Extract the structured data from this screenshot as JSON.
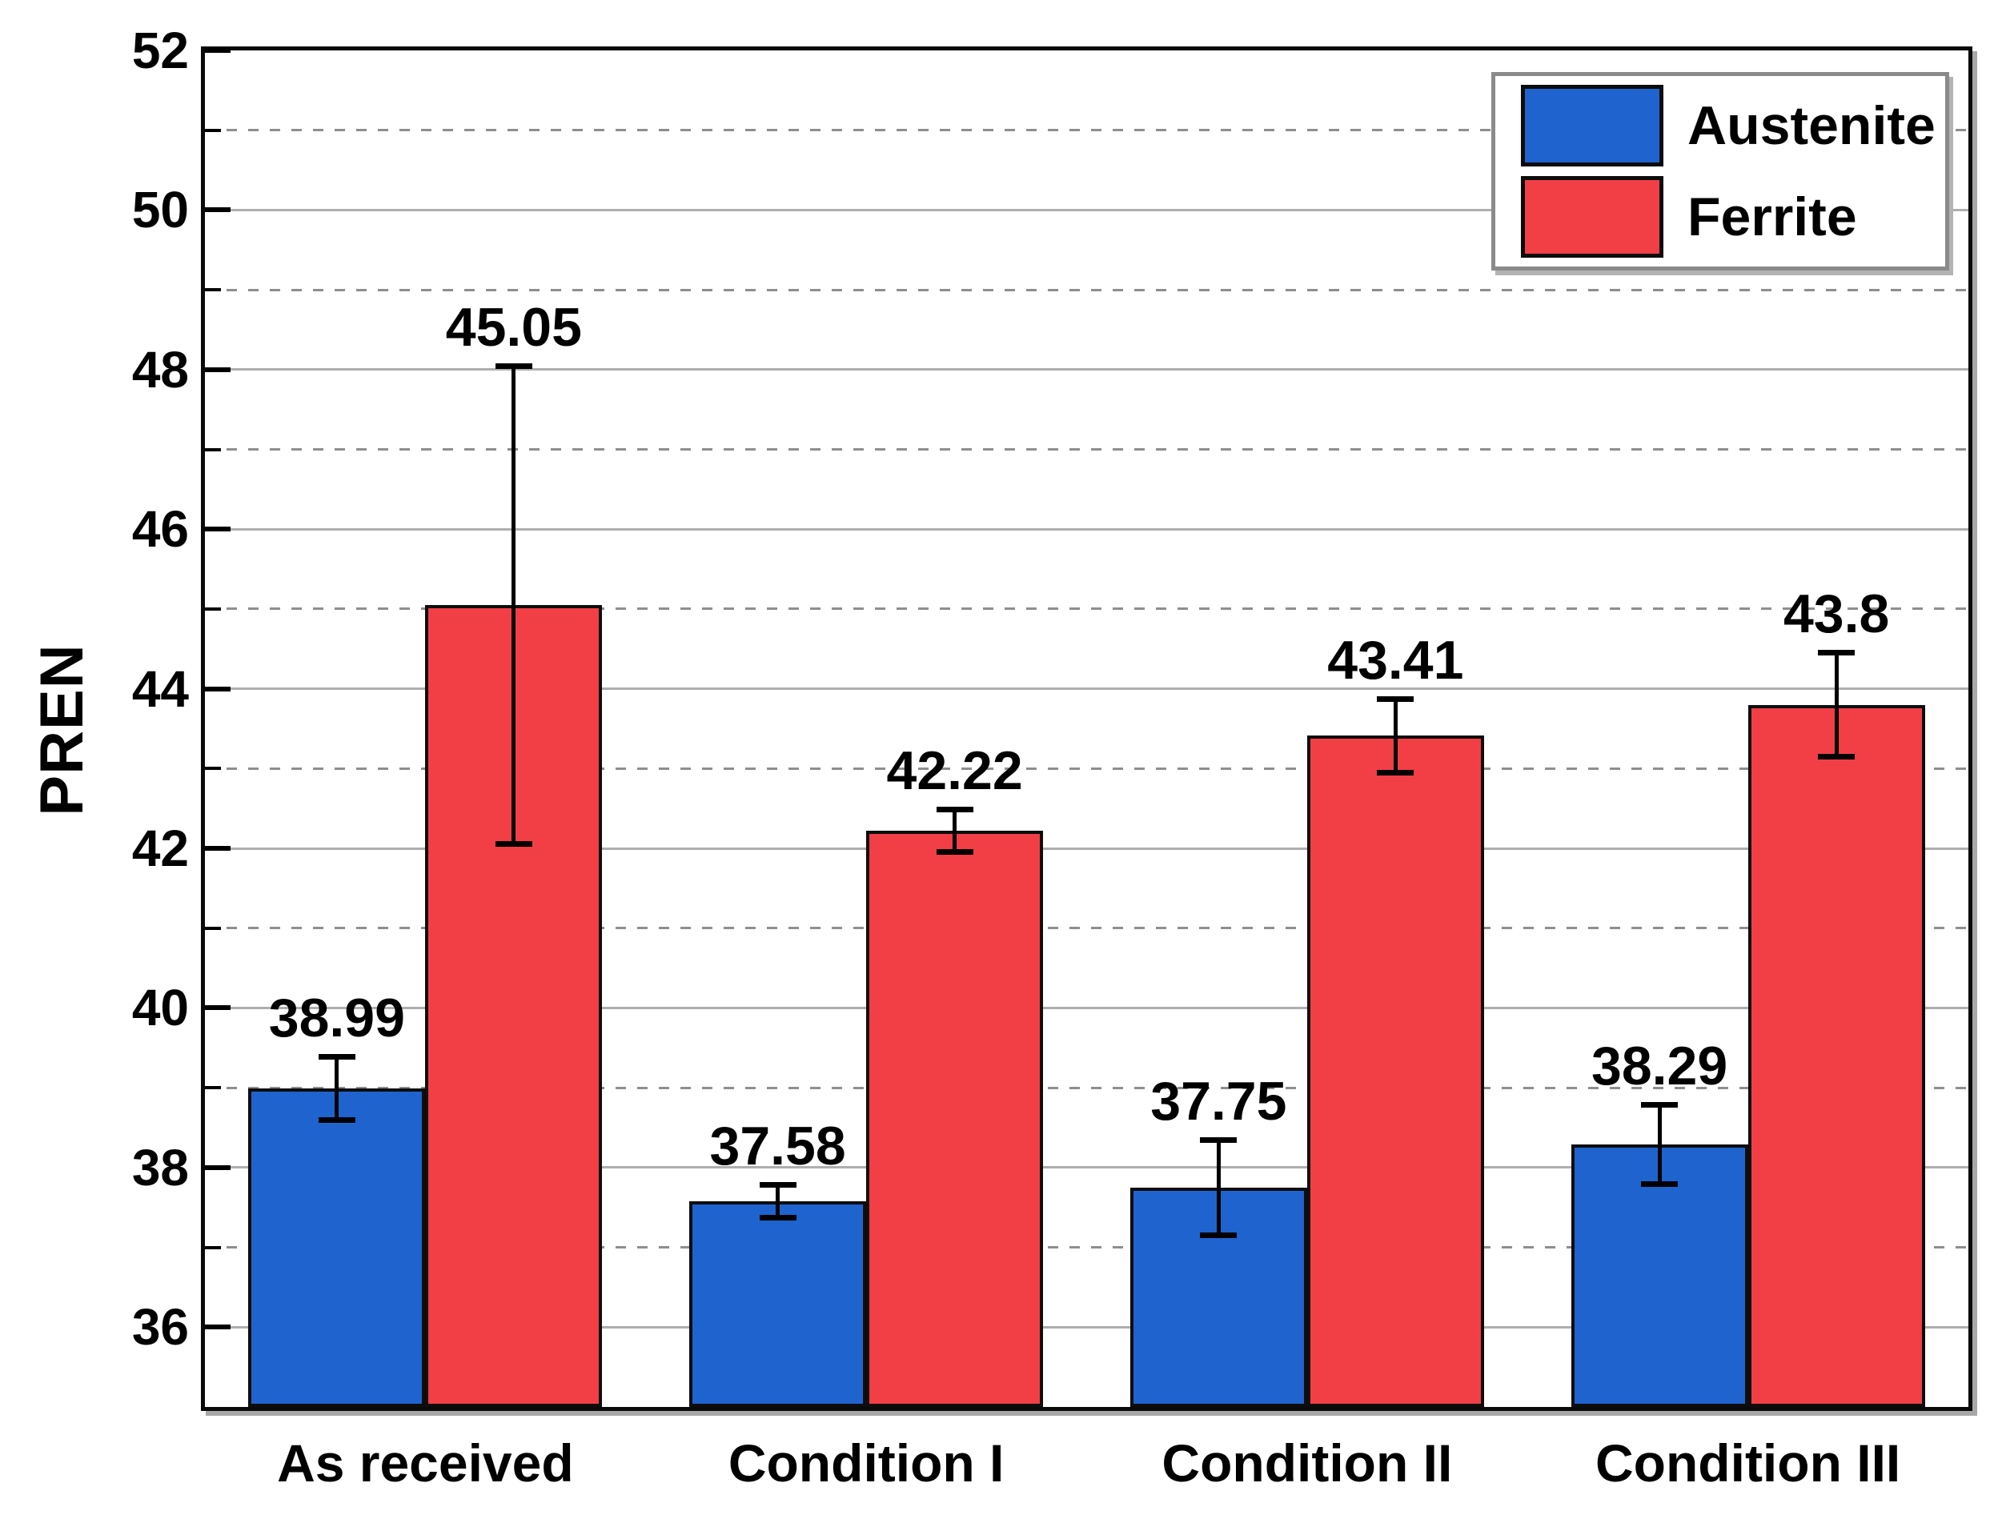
{
  "chart_data": {
    "type": "bar",
    "title": "",
    "xlabel": "",
    "ylabel": "PREN",
    "ylim": [
      35,
      52
    ],
    "categories": [
      "As received",
      "Condition I",
      "Condition II",
      "Condition III"
    ],
    "series": [
      {
        "name": "Austenite",
        "color": "#1f63cf",
        "values": [
          38.99,
          37.58,
          37.75,
          38.29
        ],
        "errors": [
          0.4,
          0.21,
          0.6,
          0.5
        ],
        "labels": [
          "38.99",
          "37.58",
          "37.75",
          "38.29"
        ]
      },
      {
        "name": "Ferrite",
        "color": "#f13f45",
        "values": [
          45.05,
          42.22,
          43.41,
          43.8
        ],
        "errors": [
          3.0,
          0.27,
          0.47,
          0.66
        ],
        "labels": [
          "45.05",
          "42.22",
          "43.41",
          "43.8"
        ]
      }
    ],
    "yticks_major": [
      36,
      38,
      40,
      42,
      44,
      46,
      48,
      50,
      52
    ],
    "ytick_labels": [
      "36",
      "38",
      "40",
      "42",
      "44",
      "46",
      "48",
      "50",
      "52"
    ],
    "grid": {
      "major_style": "solid",
      "minor_style": "dashed",
      "minor_every": 1
    },
    "legend_position": "top-right",
    "error_bars": true
  }
}
